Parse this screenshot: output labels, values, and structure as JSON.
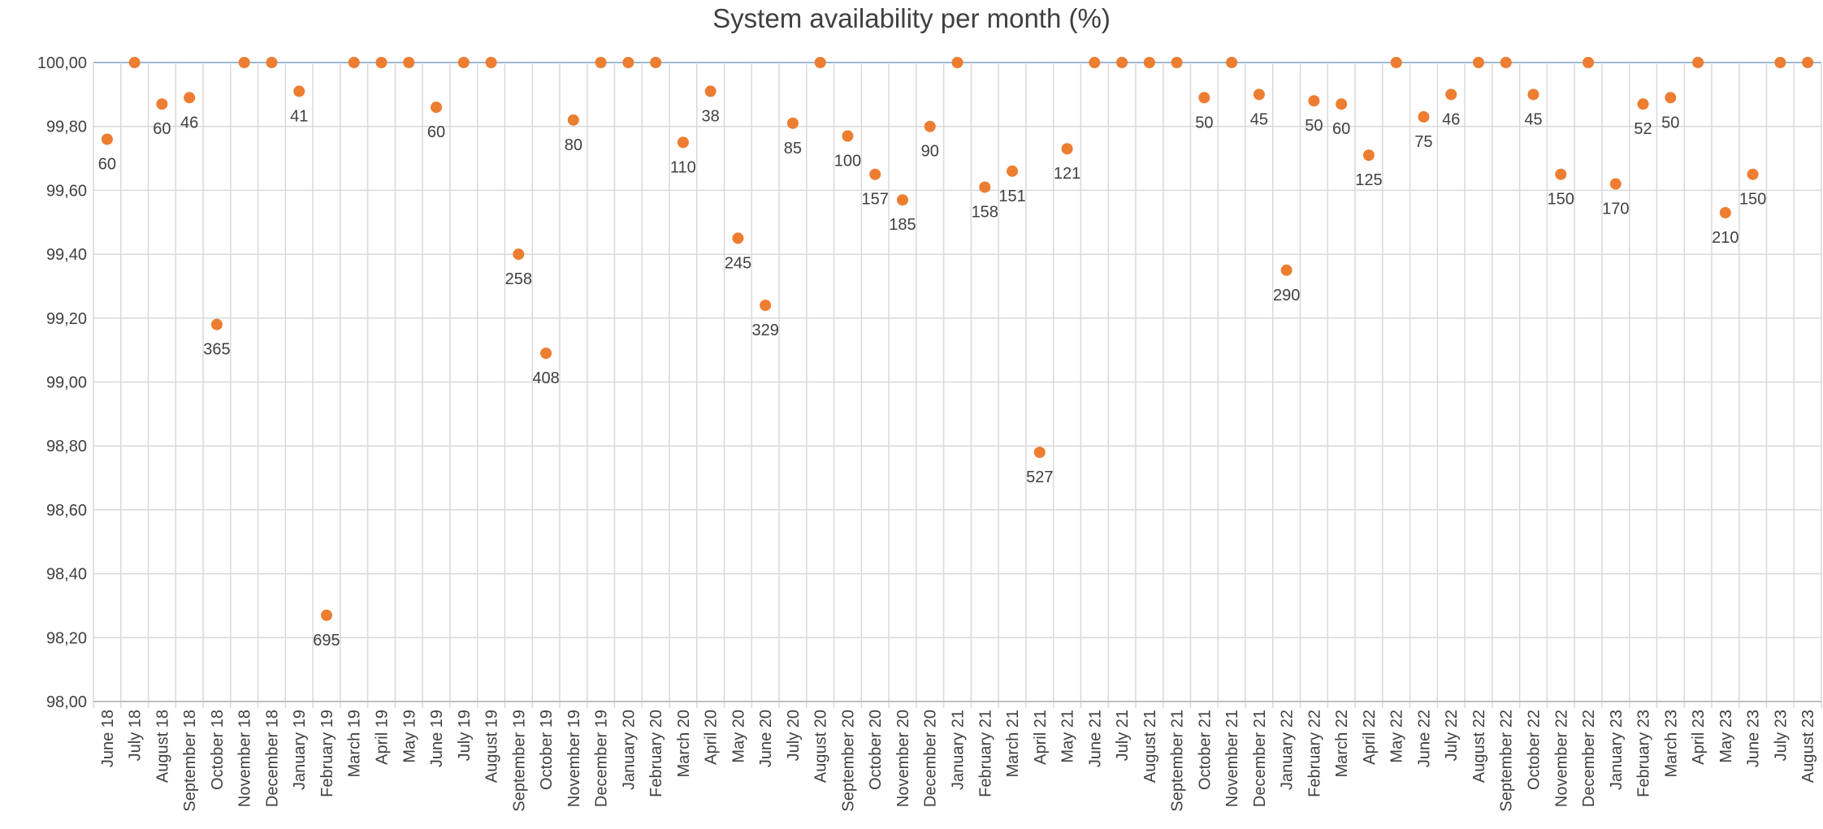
{
  "chart_data": {
    "type": "scatter",
    "title": "System availability per month (%)",
    "xlabel": "",
    "ylabel": "",
    "ylim": [
      98.0,
      100.0
    ],
    "y_tick_step": 0.2,
    "y_tick_labels": [
      "98,00",
      "98,20",
      "98,40",
      "98,60",
      "98,80",
      "99,00",
      "99,20",
      "99,40",
      "99,60",
      "99,80",
      "100,00"
    ],
    "grid": true,
    "legend": "none",
    "marker_color": "#ED7D31",
    "categories": [
      "June 18",
      "July 18",
      "August 18",
      "September 18",
      "October 18",
      "November 18",
      "December 18",
      "January 19",
      "February 19",
      "March 19",
      "April 19",
      "May 19",
      "June 19",
      "July 19",
      "August 19",
      "September 19",
      "October 19",
      "November 19",
      "December 19",
      "January 20",
      "February 20",
      "March 20",
      "April 20",
      "May 20",
      "June 20",
      "July 20",
      "August 20",
      "September 20",
      "October 20",
      "November 20",
      "December 20",
      "January 21",
      "February 21",
      "March 21",
      "April 21",
      "May 21",
      "June 21",
      "July 21",
      "August 21",
      "September 21",
      "October 21",
      "November 21",
      "December 21",
      "January 22",
      "February 22",
      "March 22",
      "April 22",
      "May 22",
      "June 22",
      "July 22",
      "August 22",
      "September 22",
      "October 22",
      "November 22",
      "December 22",
      "January 23",
      "February 23",
      "March 23",
      "April 23",
      "May 23",
      "June 23",
      "July 23",
      "August 23"
    ],
    "values": [
      99.76,
      100,
      99.87,
      99.89,
      99.18,
      100,
      100,
      99.91,
      98.27,
      100,
      100,
      100,
      99.86,
      100,
      100,
      99.4,
      99.09,
      99.82,
      100,
      100,
      100,
      99.75,
      99.91,
      99.45,
      99.24,
      99.81,
      100,
      99.77,
      99.65,
      99.57,
      99.8,
      100,
      99.61,
      99.66,
      98.78,
      99.73,
      100,
      100,
      100,
      100,
      99.89,
      100,
      99.9,
      99.35,
      99.88,
      99.87,
      99.71,
      100,
      99.83,
      99.9,
      100,
      100,
      99.9,
      99.65,
      100,
      99.62,
      99.87,
      99.89,
      100,
      99.53,
      99.65,
      100,
      100
    ],
    "data_labels": [
      "60",
      "",
      "60",
      "46",
      "365",
      "",
      "",
      "41",
      "695",
      "",
      "",
      "",
      "60",
      "",
      "",
      "258",
      "408",
      "80",
      "",
      "",
      "",
      "110",
      "38",
      "245",
      "329",
      "85",
      "",
      "100",
      "157",
      "185",
      "90",
      "",
      "158",
      "151",
      "527",
      "121",
      "",
      "",
      "",
      "",
      "50",
      "",
      "45",
      "290",
      "50",
      "60",
      "125",
      "",
      "75",
      "46",
      "",
      "",
      "45",
      "150",
      "",
      "170",
      "52",
      "50",
      "",
      "210",
      "150",
      "",
      ""
    ]
  }
}
